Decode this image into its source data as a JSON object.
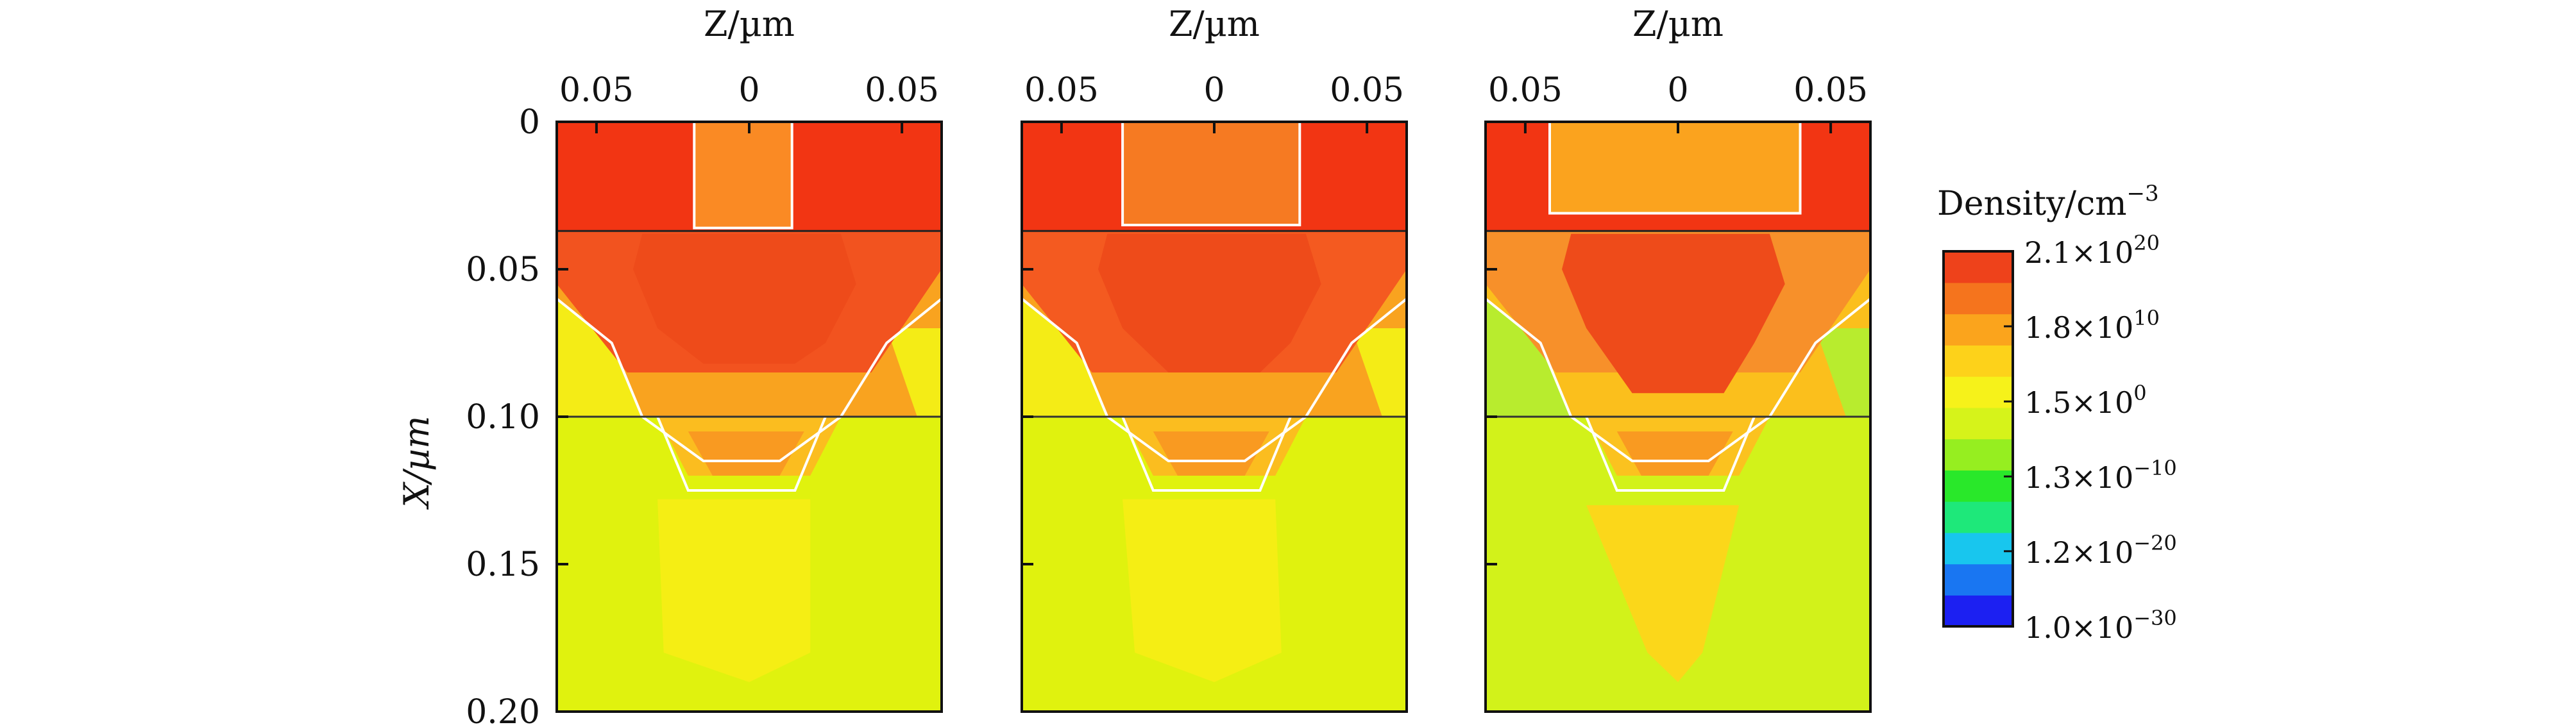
{
  "chart_data": {
    "type": "heatmap",
    "panel_xlabel": "Z/µm",
    "ylabel": "X/µm",
    "x_tick_labels": [
      "0.05",
      "0",
      "0.05"
    ],
    "y_tick_labels": [
      "0",
      "0.05",
      "0.10",
      "0.15",
      "0.20"
    ],
    "x_ticks": [
      -0.05,
      0,
      0.05
    ],
    "y_ticks": [
      0,
      0.05,
      0.1,
      0.15,
      0.2
    ],
    "xlim": [
      -0.063,
      0.063
    ],
    "ylim": [
      0,
      0.2
    ],
    "grid": false,
    "colorbar": {
      "title": "Density/cm",
      "title_exponent": "−3",
      "scale": "log",
      "range": [
        1e-30,
        2.1e+20
      ],
      "labels": [
        {
          "mantissa": "2.1",
          "exponent": "20",
          "value": 2.1e+20
        },
        {
          "mantissa": "1.8",
          "exponent": "10",
          "value": 18000000000.0
        },
        {
          "mantissa": "1.5",
          "exponent": "0",
          "value": 1.5
        },
        {
          "mantissa": "1.3",
          "exponent": "−10",
          "value": 1.3e-10
        },
        {
          "mantissa": "1.2",
          "exponent": "−20",
          "value": 1.2e-20
        },
        {
          "mantissa": "1.0",
          "exponent": "−30",
          "value": 1e-30
        }
      ],
      "colors": [
        "#1c20f2",
        "#1976f2",
        "#18c6ee",
        "#1ee87a",
        "#29e82a",
        "#96ee20",
        "#d6f31a",
        "#f6f21a",
        "#fdd21a",
        "#fba41c",
        "#f5741d",
        "#ee421b"
      ]
    },
    "panels": [
      {
        "colors": {
          "top": "#f23513",
          "gate": "#fa8a24",
          "top_mid": "#f2531f",
          "mid_side": "#f9a31f",
          "core": "#ee4b1a",
          "lower_core": "#f99a21",
          "lower_ring": "#fbbd1f",
          "deep": "#e0f20e",
          "deep_center": "#f5ee14",
          "mid_left": "#f4ec16"
        },
        "shapes": {
          "gate_left": -0.018,
          "gate_right": 0.014,
          "gate_depth": 0.036,
          "core_depth": 0.082,
          "bottom_depth": 0.128,
          "deep_left": -0.028,
          "deep_right": 0.02
        }
      },
      {
        "colors": {
          "top": "#f23513",
          "gate": "#f67a22",
          "top_mid": "#f45a20",
          "mid_side": "#f9a31f",
          "core": "#ee4b1a",
          "lower_core": "#f99a21",
          "lower_ring": "#fbbd1f",
          "deep": "#e0f20e",
          "deep_center": "#f5ee14",
          "mid_left": "#f4ec16"
        },
        "shapes": {
          "gate_left": -0.03,
          "gate_right": 0.028,
          "gate_depth": 0.035,
          "core_depth": 0.085,
          "bottom_depth": 0.128,
          "deep_left": -0.026,
          "deep_right": 0.022
        }
      },
      {
        "colors": {
          "top": "#f23513",
          "gate": "#fba31e",
          "top_mid": "#f7902a",
          "mid_side": "#fbbf1c",
          "core": "#ee4b1a",
          "lower_core": "#f99a21",
          "lower_ring": "#fbc21f",
          "deep": "#d2f21a",
          "deep_center": "#fbd71a",
          "mid_left": "#b8ec2e"
        },
        "shapes": {
          "gate_left": -0.042,
          "gate_right": 0.04,
          "gate_depth": 0.031,
          "core_depth": 0.092,
          "bottom_depth": 0.13,
          "deep_left": -0.01,
          "deep_right": 0.008
        }
      }
    ]
  }
}
